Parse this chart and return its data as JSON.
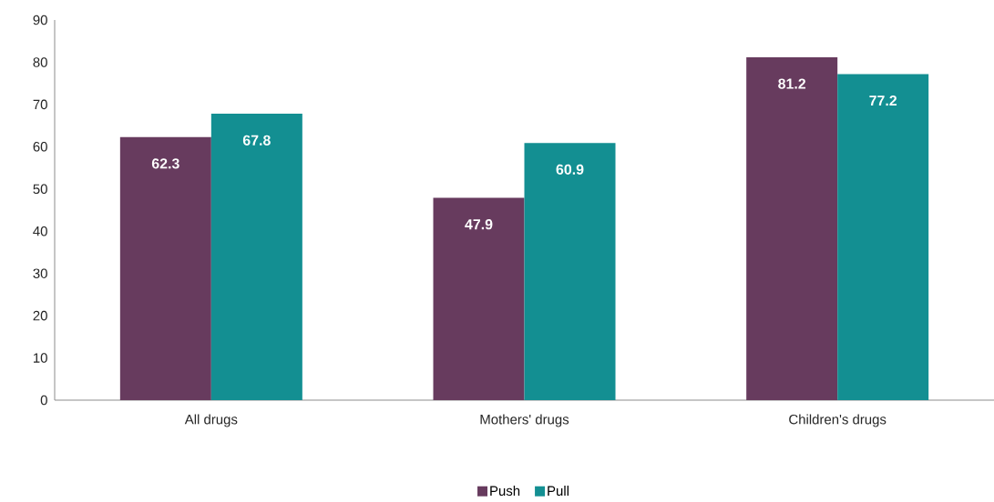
{
  "chart_data": {
    "type": "bar",
    "categories": [
      "All drugs",
      "Mothers' drugs",
      "Children's drugs"
    ],
    "series": [
      {
        "name": "Push",
        "color": "#673b5e",
        "values": [
          62.3,
          47.9,
          81.2
        ]
      },
      {
        "name": "Pull",
        "color": "#138f92",
        "values": [
          67.8,
          60.9,
          77.2
        ]
      }
    ],
    "ylim": [
      0,
      90
    ],
    "yticks": [
      0,
      10,
      20,
      30,
      40,
      50,
      60,
      70,
      80,
      90
    ],
    "data_labels": true,
    "legend": "bottom",
    "grid": false
  }
}
